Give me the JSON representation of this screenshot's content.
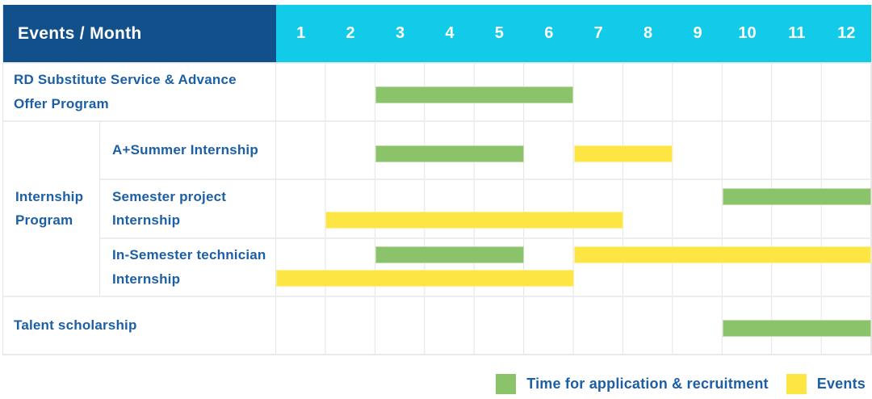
{
  "colors": {
    "dark_blue": "#12508b",
    "cyan": "#12cbe8",
    "green": "#8ac369",
    "yellow": "#fde544",
    "blue_text": "#1c5fa4"
  },
  "header": {
    "label_column": "Events / Month",
    "months": [
      "1",
      "2",
      "3",
      "4",
      "5",
      "6",
      "7",
      "8",
      "9",
      "10",
      "11",
      "12"
    ]
  },
  "legend": {
    "application_label": "Time for application & recruitment",
    "events_label": "Events"
  },
  "chart_data": {
    "type": "bar",
    "subtype": "gantt",
    "title": "Events / Month",
    "x_axis": "Month",
    "x_range": [
      1,
      12
    ],
    "group_label": "Internship Program",
    "legend": [
      {
        "color_key": "green",
        "label": "Time for application & recruitment"
      },
      {
        "color_key": "yellow",
        "label": "Events"
      }
    ],
    "rows": [
      {
        "label": "RD Substitute Service & Advance Offer Program",
        "group": null,
        "bars": [
          {
            "kind": "application",
            "color": "green",
            "start_month": 3,
            "end_month": 6,
            "lane": "single"
          }
        ]
      },
      {
        "label": "A+Summer Internship",
        "group": "Internship Program",
        "bars": [
          {
            "kind": "application",
            "color": "green",
            "start_month": 3,
            "end_month": 5,
            "lane": "single"
          },
          {
            "kind": "event",
            "color": "yellow",
            "start_month": 7,
            "end_month": 8,
            "lane": "single"
          }
        ]
      },
      {
        "label": "Semester project Internship",
        "group": "Internship Program",
        "bars": [
          {
            "kind": "application",
            "color": "green",
            "start_month": 10,
            "end_month": 12,
            "lane": "upper"
          },
          {
            "kind": "event",
            "color": "yellow",
            "start_month": 2,
            "end_month": 7,
            "lane": "lower"
          }
        ]
      },
      {
        "label": "In-Semester technician Internship",
        "group": "Internship Program",
        "bars": [
          {
            "kind": "application",
            "color": "green",
            "start_month": 3,
            "end_month": 5,
            "lane": "upper"
          },
          {
            "kind": "event",
            "color": "yellow",
            "start_month": 7,
            "end_month": 12,
            "lane": "upper"
          },
          {
            "kind": "event",
            "color": "yellow",
            "start_month": 1,
            "end_month": 6,
            "lane": "lower"
          }
        ]
      },
      {
        "label": "Talent scholarship",
        "group": null,
        "bars": [
          {
            "kind": "application",
            "color": "green",
            "start_month": 10,
            "end_month": 12,
            "lane": "single"
          }
        ]
      }
    ]
  }
}
